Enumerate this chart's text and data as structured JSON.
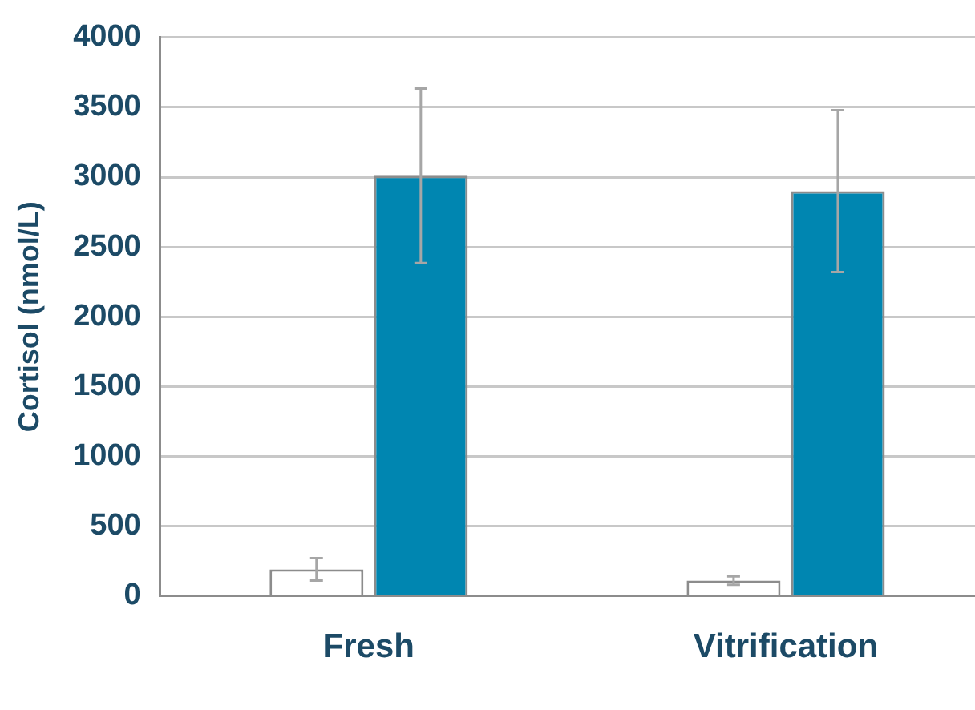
{
  "chart_data": {
    "type": "bar",
    "ylabel": "Cortisol (nmol/L)",
    "categories": [
      "Fresh",
      "Vitrification"
    ],
    "series": [
      {
        "color": "#ffffff",
        "values": [
          190,
          110
        ],
        "errors": [
          80,
          30
        ]
      },
      {
        "color": "#0086b1",
        "values": [
          3010,
          2900
        ],
        "errors": [
          625,
          580
        ]
      }
    ],
    "ylim": [
      0,
      4000
    ],
    "yticks": [
      0,
      500,
      1000,
      1500,
      2000,
      2500,
      3000,
      3500,
      4000
    ],
    "grid": "y",
    "legend": false
  }
}
